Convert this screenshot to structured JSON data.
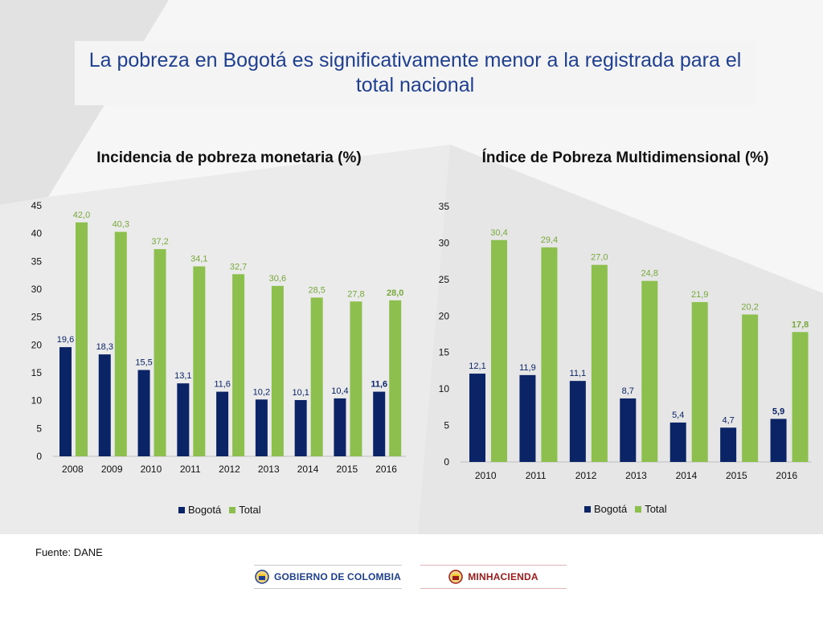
{
  "slide": {
    "title": "La pobreza en Bogotá es significativamente menor a la registrada para el total nacional",
    "source": "Fuente: DANE",
    "logos": {
      "gobierno": "GOBIERNO DE COLOMBIA",
      "minhacienda": "MINHACIENDA"
    }
  },
  "colors": {
    "bogota": "#0b2466",
    "total": "#8dbf4f",
    "title": "#1f3f8f",
    "label_total": "#77a83b"
  },
  "chart_data": [
    {
      "type": "bar",
      "title": "Incidencia de pobreza monetaria (%)",
      "categories": [
        "2008",
        "2009",
        "2010",
        "2011",
        "2012",
        "2013",
        "2014",
        "2015",
        "2016"
      ],
      "series": [
        {
          "name": "Bogotá",
          "values": [
            19.6,
            18.3,
            15.5,
            13.1,
            11.6,
            10.2,
            10.1,
            10.4,
            11.6
          ],
          "labels": [
            "19,6",
            "18,3",
            "15,5",
            "13,1",
            "11,6",
            "10,2",
            "10,1",
            "10,4",
            "11,6"
          ]
        },
        {
          "name": "Total",
          "values": [
            42.0,
            40.3,
            37.2,
            34.1,
            32.7,
            30.6,
            28.5,
            27.8,
            28.0
          ],
          "labels": [
            "42,0",
            "40,3",
            "37,2",
            "34,1",
            "32,7",
            "30,6",
            "28,5",
            "27,8",
            "28,0"
          ]
        }
      ],
      "ylim": [
        0,
        45
      ],
      "yticks": [
        0,
        5,
        10,
        15,
        20,
        25,
        30,
        35,
        40,
        45
      ],
      "grid": false,
      "legend": "bottom",
      "bold_last_labels": true
    },
    {
      "type": "bar",
      "title": "Índice de Pobreza Multidimensional (%)",
      "categories": [
        "2010",
        "2011",
        "2012",
        "2013",
        "2014",
        "2015",
        "2016"
      ],
      "series": [
        {
          "name": "Bogotá",
          "values": [
            12.1,
            11.9,
            11.1,
            8.7,
            5.4,
            4.7,
            5.9
          ],
          "labels": [
            "12,1",
            "11,9",
            "11,1",
            "8,7",
            "5,4",
            "4,7",
            "5,9"
          ]
        },
        {
          "name": "Total",
          "values": [
            30.4,
            29.4,
            27.0,
            24.8,
            21.9,
            20.2,
            17.8
          ],
          "labels": [
            "30,4",
            "29,4",
            "27,0",
            "24,8",
            "21,9",
            "20,2",
            "17,8"
          ]
        }
      ],
      "ylim": [
        0,
        35
      ],
      "yticks": [
        0,
        5,
        10,
        15,
        20,
        25,
        30,
        35
      ],
      "grid": false,
      "legend": "bottom",
      "bold_last_labels": true
    }
  ]
}
